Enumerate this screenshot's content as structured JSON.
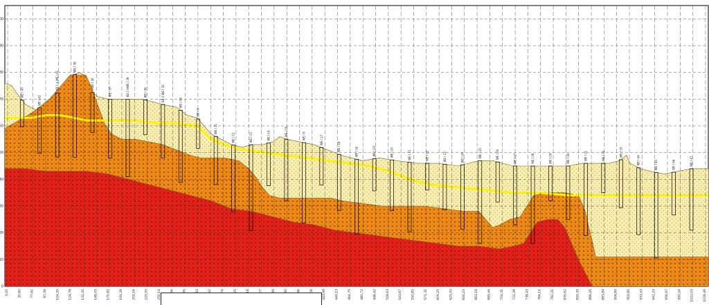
{
  "chart_data": {
    "type": "geological-cross-section",
    "title": "",
    "xlabel": "",
    "ylabel": "",
    "ylim": [
      0,
      105
    ],
    "y_ticks": [
      0,
      10,
      20,
      30,
      40,
      50,
      60,
      70,
      80,
      90,
      100
    ],
    "x_ticks": [
      "0,00",
      "30,60",
      "77,61",
      "87,49",
      "104,35",
      "124,78",
      "131,45",
      "148,05",
      "170,82",
      "191,28",
      "209,16",
      "229,55",
      "250,14",
      "262,56",
      "270,45",
      "293,83",
      "315,42",
      "328,74",
      "353,25",
      "359,16",
      "380,07",
      "392,89",
      "400,80",
      "413,46",
      "435,08",
      "443,99",
      "449,13",
      "464,75",
      "480,72",
      "496,42",
      "518,63",
      "543,67",
      "550,85",
      "571,31",
      "609,25",
      "625,55",
      "644,23",
      "663,18",
      "689,44",
      "704,31",
      "721,26",
      "738,43",
      "764,11",
      "782,21",
      "835,62",
      "859,39",
      "866,45",
      "883,84",
      "906,89",
      "919,85",
      "933,43",
      "942,29",
      "958,97",
      "990,24",
      "1012,05",
      "1026,49"
    ],
    "layers": [
      {
        "name": "surface-fill",
        "color": "#f7edae",
        "top": [
          [
            0,
            76
          ],
          [
            10,
            75
          ],
          [
            18,
            72
          ],
          [
            30,
            68
          ],
          [
            45,
            66
          ],
          [
            60,
            68
          ],
          [
            75,
            72
          ],
          [
            90,
            76
          ],
          [
            100,
            79
          ],
          [
            108,
            80
          ],
          [
            115,
            79
          ],
          [
            120,
            76
          ],
          [
            125,
            73
          ],
          [
            135,
            71
          ],
          [
            150,
            70
          ],
          [
            170,
            70
          ],
          [
            200,
            70
          ],
          [
            215,
            69
          ],
          [
            230,
            68
          ],
          [
            250,
            67
          ],
          [
            265,
            64
          ],
          [
            280,
            63
          ],
          [
            290,
            60
          ],
          [
            300,
            57
          ],
          [
            315,
            55
          ],
          [
            330,
            53
          ],
          [
            345,
            52
          ],
          [
            360,
            53
          ],
          [
            375,
            53
          ],
          [
            390,
            54
          ],
          [
            400,
            56
          ],
          [
            410,
            55
          ],
          [
            430,
            54
          ],
          [
            450,
            53
          ],
          [
            470,
            51
          ],
          [
            490,
            49
          ],
          [
            505,
            48
          ],
          [
            520,
            47
          ],
          [
            545,
            48
          ],
          [
            570,
            47
          ],
          [
            600,
            46
          ],
          [
            630,
            46
          ],
          [
            660,
            45
          ],
          [
            690,
            47
          ],
          [
            710,
            47
          ],
          [
            740,
            45
          ],
          [
            770,
            45
          ],
          [
            800,
            45
          ],
          [
            820,
            45
          ],
          [
            840,
            46
          ],
          [
            860,
            46
          ],
          [
            880,
            46
          ],
          [
            895,
            47
          ],
          [
            905,
            49
          ],
          [
            910,
            46
          ],
          [
            925,
            44
          ],
          [
            940,
            43
          ],
          [
            960,
            42
          ],
          [
            980,
            43
          ],
          [
            1000,
            44
          ],
          [
            1015,
            44
          ],
          [
            1024,
            44
          ]
        ]
      },
      {
        "name": "intermediate-orange",
        "color": "#f28c17",
        "top": [
          [
            0,
            59
          ],
          [
            20,
            62
          ],
          [
            40,
            65
          ],
          [
            55,
            68
          ],
          [
            65,
            70
          ],
          [
            75,
            73
          ],
          [
            85,
            76
          ],
          [
            95,
            79
          ],
          [
            102,
            79
          ],
          [
            110,
            79
          ],
          [
            118,
            79
          ],
          [
            125,
            75
          ],
          [
            135,
            68
          ],
          [
            145,
            61
          ],
          [
            155,
            57
          ],
          [
            170,
            55
          ],
          [
            190,
            55
          ],
          [
            210,
            54
          ],
          [
            230,
            53
          ],
          [
            250,
            51
          ],
          [
            270,
            49
          ],
          [
            285,
            48
          ],
          [
            300,
            48
          ],
          [
            320,
            48
          ],
          [
            340,
            47
          ],
          [
            355,
            44
          ],
          [
            365,
            41
          ],
          [
            375,
            37
          ],
          [
            385,
            34
          ],
          [
            400,
            33
          ],
          [
            420,
            33
          ],
          [
            440,
            33
          ],
          [
            460,
            33
          ],
          [
            475,
            33
          ],
          [
            490,
            32
          ],
          [
            520,
            31
          ],
          [
            550,
            30
          ],
          [
            580,
            30
          ],
          [
            610,
            30
          ],
          [
            640,
            29
          ],
          [
            670,
            28
          ],
          [
            690,
            28
          ],
          [
            700,
            25
          ],
          [
            710,
            22
          ],
          [
            720,
            23
          ],
          [
            735,
            25
          ],
          [
            750,
            26
          ],
          [
            760,
            30
          ],
          [
            770,
            34
          ],
          [
            790,
            35
          ],
          [
            815,
            35
          ],
          [
            835,
            34
          ],
          [
            845,
            28
          ],
          [
            850,
            22
          ],
          [
            855,
            17
          ],
          [
            860,
            11
          ],
          [
            1024,
            11
          ]
        ]
      },
      {
        "name": "lower-red",
        "color": "#e8201a",
        "top": [
          [
            0,
            44
          ],
          [
            30,
            44
          ],
          [
            60,
            43
          ],
          [
            90,
            43
          ],
          [
            120,
            43
          ],
          [
            150,
            42
          ],
          [
            180,
            40
          ],
          [
            210,
            38
          ],
          [
            240,
            36
          ],
          [
            270,
            34
          ],
          [
            300,
            32
          ],
          [
            330,
            29
          ],
          [
            360,
            28
          ],
          [
            390,
            26
          ],
          [
            420,
            24
          ],
          [
            450,
            23
          ],
          [
            480,
            21
          ],
          [
            510,
            20
          ],
          [
            540,
            19
          ],
          [
            570,
            18
          ],
          [
            600,
            17
          ],
          [
            630,
            16
          ],
          [
            660,
            15
          ],
          [
            690,
            15
          ],
          [
            720,
            14
          ],
          [
            740,
            15
          ],
          [
            755,
            16
          ],
          [
            765,
            20
          ],
          [
            775,
            24
          ],
          [
            790,
            25
          ],
          [
            805,
            25
          ],
          [
            815,
            22
          ],
          [
            825,
            16
          ],
          [
            835,
            10
          ],
          [
            845,
            5
          ],
          [
            855,
            0
          ]
        ]
      }
    ],
    "water_table": {
      "color": "#fff200",
      "points": [
        [
          0,
          63
        ],
        [
          40,
          63
        ],
        [
          60,
          64
        ],
        [
          80,
          64
        ],
        [
          100,
          63
        ],
        [
          120,
          62
        ],
        [
          140,
          62
        ],
        [
          160,
          62
        ],
        [
          190,
          62
        ],
        [
          220,
          61
        ],
        [
          250,
          61
        ],
        [
          280,
          60
        ],
        [
          300,
          55
        ],
        [
          330,
          52
        ],
        [
          350,
          51
        ],
        [
          380,
          50
        ],
        [
          410,
          49
        ],
        [
          440,
          48
        ],
        [
          470,
          47
        ],
        [
          500,
          46
        ],
        [
          530,
          45
        ],
        [
          560,
          43
        ],
        [
          590,
          40
        ],
        [
          620,
          38
        ],
        [
          660,
          37
        ],
        [
          700,
          36
        ],
        [
          740,
          35
        ],
        [
          780,
          35
        ],
        [
          820,
          34
        ],
        [
          860,
          34
        ],
        [
          900,
          34
        ],
        [
          940,
          34
        ],
        [
          980,
          34
        ],
        [
          1024,
          34
        ]
      ]
    },
    "borehole_labels": [
      "WE I 43",
      "WE I 42",
      "KB 1 a WE I 41",
      "WE I 38",
      "HWE I 40",
      "WE I 37",
      "KB 2 HWE I 39",
      "WE I 36",
      "KB 3 WE I 35",
      "WE I 34",
      "WE I 6",
      "WE I 11",
      "WE I 12",
      "WE I 13",
      "WE I 14",
      "WE I 15",
      "WE I 9",
      "WE I 17",
      "WE I 18",
      "WE I 16",
      "WE I 19",
      "WE I 20",
      "WE I 21",
      "WE I 22",
      "WE I 23",
      "WE I 24",
      "WE I 25",
      "WE I 26",
      "WE I 27",
      "WE I 28",
      "WE I 29",
      "WE I 30",
      "WE I 31",
      "WE I 32",
      "WE I 33",
      "WE I 44",
      "WE I 45",
      "WE I 46",
      "WE I 47"
    ]
  }
}
